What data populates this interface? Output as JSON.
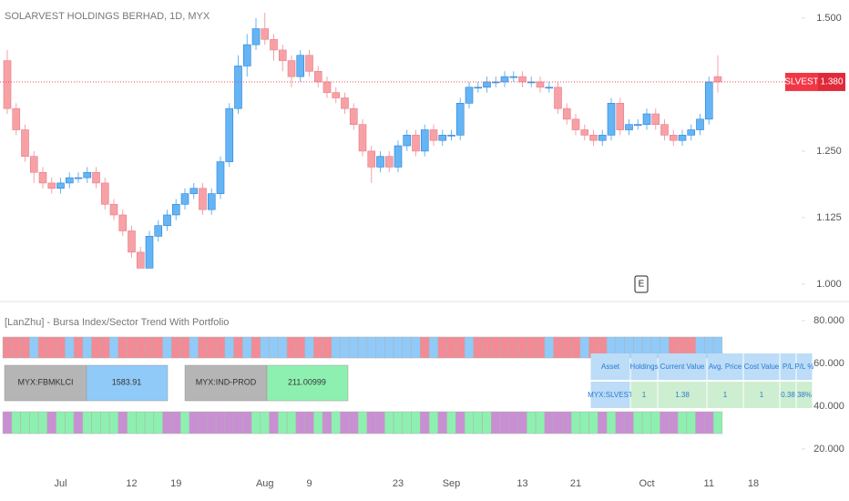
{
  "chart_data": [
    {
      "type": "candlestick",
      "title": "SOLARVEST HOLDINGS BERHAD, 1D, MYX",
      "categories": [
        null,
        null,
        null,
        null,
        null,
        null,
        "Jul",
        null,
        null,
        null,
        null,
        null,
        null,
        null,
        "12",
        null,
        null,
        null,
        null,
        "19",
        null,
        null,
        null,
        null,
        null,
        null,
        null,
        null,
        null,
        "Aug",
        null,
        null,
        null,
        null,
        "9",
        null,
        null,
        null,
        null,
        null,
        null,
        null,
        null,
        null,
        "23",
        null,
        null,
        null,
        null,
        null,
        "Sep",
        null,
        null,
        null,
        null,
        null,
        null,
        null,
        "13",
        null,
        null,
        null,
        null,
        null,
        "21",
        null,
        null,
        null,
        null,
        null,
        null,
        null,
        "Oct",
        null,
        null,
        null,
        null,
        null,
        null,
        "11",
        null,
        null,
        null,
        null,
        "18"
      ],
      "open": [
        1.42,
        1.33,
        1.29,
        1.24,
        1.21,
        1.19,
        1.18,
        1.19,
        1.2,
        1.2,
        1.21,
        1.19,
        1.15,
        1.13,
        1.1,
        1.06,
        1.03,
        1.09,
        1.11,
        1.13,
        1.15,
        1.17,
        1.18,
        1.14,
        1.17,
        1.23,
        1.33,
        1.41,
        1.45,
        1.48,
        1.46,
        1.44,
        1.42,
        1.39,
        1.43,
        1.4,
        1.38,
        1.36,
        1.35,
        1.33,
        1.3,
        1.25,
        1.22,
        1.24,
        1.22,
        1.26,
        1.28,
        1.25,
        1.29,
        1.27,
        1.28,
        1.28,
        1.34,
        1.37,
        1.37,
        1.38,
        1.38,
        1.39,
        1.39,
        1.38,
        1.38,
        1.37,
        1.37,
        1.33,
        1.31,
        1.29,
        1.28,
        1.27,
        1.28,
        1.34,
        1.29,
        1.3,
        1.3,
        1.32,
        1.3,
        1.28,
        1.27,
        1.28,
        1.29,
        1.31,
        1.39,
        null,
        null,
        null,
        null
      ],
      "high": [
        1.44,
        1.34,
        1.3,
        1.25,
        1.22,
        1.2,
        1.2,
        1.21,
        1.21,
        1.22,
        1.22,
        1.2,
        1.16,
        1.14,
        1.11,
        1.07,
        1.1,
        1.12,
        1.14,
        1.16,
        1.18,
        1.19,
        1.19,
        1.18,
        1.24,
        1.34,
        1.43,
        1.47,
        1.5,
        1.51,
        1.47,
        1.45,
        1.43,
        1.44,
        1.44,
        1.41,
        1.39,
        1.37,
        1.36,
        1.34,
        1.31,
        1.26,
        1.25,
        1.25,
        1.27,
        1.29,
        1.29,
        1.3,
        1.3,
        1.29,
        1.29,
        1.35,
        1.38,
        1.38,
        1.39,
        1.39,
        1.4,
        1.4,
        1.4,
        1.39,
        1.39,
        1.38,
        1.38,
        1.34,
        1.32,
        1.3,
        1.29,
        1.29,
        1.35,
        1.35,
        1.31,
        1.31,
        1.33,
        1.33,
        1.31,
        1.29,
        1.29,
        1.3,
        1.32,
        1.39,
        1.43,
        null,
        null,
        null,
        null
      ],
      "low": [
        1.32,
        1.28,
        1.23,
        1.19,
        1.18,
        1.17,
        1.17,
        1.18,
        1.19,
        1.19,
        1.18,
        1.14,
        1.12,
        1.09,
        1.05,
        1.03,
        1.03,
        1.08,
        1.1,
        1.12,
        1.14,
        1.16,
        1.13,
        1.13,
        1.16,
        1.22,
        1.32,
        1.39,
        1.44,
        1.45,
        1.42,
        1.4,
        1.37,
        1.38,
        1.39,
        1.37,
        1.35,
        1.34,
        1.32,
        1.29,
        1.24,
        1.19,
        1.21,
        1.21,
        1.21,
        1.25,
        1.24,
        1.24,
        1.26,
        1.26,
        1.27,
        1.27,
        1.33,
        1.36,
        1.36,
        1.37,
        1.37,
        1.38,
        1.37,
        1.37,
        1.36,
        1.36,
        1.32,
        1.3,
        1.28,
        1.27,
        1.26,
        1.26,
        1.27,
        1.28,
        1.28,
        1.29,
        1.29,
        1.29,
        1.27,
        1.26,
        1.26,
        1.27,
        1.28,
        1.3,
        1.36,
        null,
        null,
        null,
        null
      ],
      "close": [
        1.33,
        1.29,
        1.24,
        1.21,
        1.19,
        1.18,
        1.19,
        1.2,
        1.2,
        1.21,
        1.19,
        1.15,
        1.13,
        1.1,
        1.06,
        1.03,
        1.09,
        1.11,
        1.13,
        1.15,
        1.17,
        1.18,
        1.14,
        1.17,
        1.23,
        1.33,
        1.41,
        1.45,
        1.48,
        1.46,
        1.44,
        1.42,
        1.39,
        1.43,
        1.4,
        1.38,
        1.36,
        1.35,
        1.33,
        1.3,
        1.25,
        1.22,
        1.24,
        1.22,
        1.26,
        1.28,
        1.25,
        1.29,
        1.27,
        1.28,
        1.28,
        1.34,
        1.37,
        1.37,
        1.38,
        1.38,
        1.39,
        1.39,
        1.38,
        1.38,
        1.37,
        1.37,
        1.33,
        1.31,
        1.29,
        1.28,
        1.27,
        1.28,
        1.34,
        1.29,
        1.3,
        1.3,
        1.32,
        1.3,
        1.28,
        1.27,
        1.28,
        1.29,
        1.31,
        1.38,
        1.38,
        null,
        null,
        null,
        null
      ],
      "up_color": "#64b5f6",
      "down_color": "#f7a1a6",
      "ylim": [
        0.969,
        1.534
      ],
      "yticks": [
        {
          "value": 1,
          "label": "1.000"
        },
        {
          "value": 1.125,
          "label": "1.125"
        },
        {
          "value": 1.25,
          "label": "1.250"
        },
        {
          "value": 1.5,
          "label": "1.500"
        }
      ],
      "symbol": "SLVEST",
      "last_price": {
        "value": 1.38,
        "label": "1.380"
      },
      "price_color": "#f23645",
      "marker": "E"
    },
    {
      "type": "indicator",
      "title": "[LanZhu] - Bursa Index/Sector Trend With Portfolio",
      "ylim": [
        10.6,
        88.5
      ],
      "yticks": [
        {
          "value": 20,
          "label": "20.000"
        },
        {
          "value": 40,
          "label": "40.000"
        },
        {
          "value": 60,
          "label": "60.000"
        },
        {
          "value": 80,
          "label": "80.000"
        }
      ],
      "index_trend": [
        "#f28b95",
        "#f28b95",
        "#f28b95",
        "#90caf9",
        "#f28b95",
        "#f28b95",
        "#f28b95",
        "#90caf9",
        "#f28b95",
        "#90caf9",
        "#f28b95",
        "#f28b95",
        "#90caf9",
        "#f28b95",
        "#f28b95",
        "#f28b95",
        "#f28b95",
        "#f28b95",
        "#90caf9",
        "#f28b95",
        "#f28b95",
        "#90caf9",
        "#f28b95",
        "#f28b95",
        "#f28b95",
        "#90caf9",
        "#f28b95",
        "#90caf9",
        "#f28b95",
        "#90caf9",
        "#90caf9",
        "#90caf9",
        "#f28b95",
        "#f28b95",
        "#90caf9",
        "#f28b95",
        "#f28b95",
        "#90caf9",
        "#90caf9",
        "#90caf9",
        "#90caf9",
        "#90caf9",
        "#90caf9",
        "#90caf9",
        "#90caf9",
        "#90caf9",
        "#90caf9",
        "#f28b95",
        "#90caf9",
        "#f28b95",
        "#f28b95",
        "#f28b95",
        "#90caf9",
        "#f28b95",
        "#f28b95",
        "#f28b95",
        "#f28b95",
        "#f28b95",
        "#f28b95",
        "#f28b95",
        "#f28b95",
        "#90caf9",
        "#f28b95",
        "#f28b95",
        "#f28b95",
        "#90caf9",
        "#f28b95",
        "#f28b95",
        "#90caf9",
        "#90caf9",
        "#90caf9",
        "#90caf9",
        "#90caf9",
        "#90caf9",
        "#90caf9",
        "#f28b95",
        "#f28b95",
        "#f28b95",
        "#90caf9",
        "#90caf9",
        "#90caf9"
      ],
      "sector_trend": [
        "#c98fd3",
        "#8ef0b0",
        "#8ef0b0",
        "#8ef0b0",
        "#8ef0b0",
        "#c98fd3",
        "#8ef0b0",
        "#8ef0b0",
        "#c98fd3",
        "#8ef0b0",
        "#8ef0b0",
        "#8ef0b0",
        "#8ef0b0",
        "#c98fd3",
        "#8ef0b0",
        "#8ef0b0",
        "#8ef0b0",
        "#8ef0b0",
        "#c98fd3",
        "#c98fd3",
        "#8ef0b0",
        "#c98fd3",
        "#c98fd3",
        "#c98fd3",
        "#c98fd3",
        "#c98fd3",
        "#c98fd3",
        "#c98fd3",
        "#8ef0b0",
        "#8ef0b0",
        "#c98fd3",
        "#8ef0b0",
        "#8ef0b0",
        "#c98fd3",
        "#c98fd3",
        "#8ef0b0",
        "#c98fd3",
        "#8ef0b0",
        "#c98fd3",
        "#c98fd3",
        "#8ef0b0",
        "#c98fd3",
        "#c98fd3",
        "#8ef0b0",
        "#8ef0b0",
        "#8ef0b0",
        "#8ef0b0",
        "#c98fd3",
        "#8ef0b0",
        "#c98fd3",
        "#8ef0b0",
        "#c98fd3",
        "#8ef0b0",
        "#8ef0b0",
        "#8ef0b0",
        "#c98fd3",
        "#c98fd3",
        "#c98fd3",
        "#c98fd3",
        "#8ef0b0",
        "#8ef0b0",
        "#c98fd3",
        "#c98fd3",
        "#c98fd3",
        "#8ef0b0",
        "#8ef0b0",
        "#8ef0b0",
        "#c98fd3",
        "#8ef0b0",
        "#c98fd3",
        "#c98fd3",
        "#8ef0b0",
        "#8ef0b0",
        "#8ef0b0",
        "#c98fd3",
        "#c98fd3",
        "#8ef0b0",
        "#8ef0b0",
        "#c98fd3",
        "#c98fd3",
        "#8ef0b0"
      ],
      "indices": [
        {
          "symbol": "MYX:FBMKLCI",
          "value": 1583.91,
          "color": "#90caf9"
        },
        {
          "symbol": "MYX:IND-PROD",
          "value": 211.00999,
          "color": "#8ef0b0"
        }
      ],
      "portfolio": {
        "columns": [
          "Asset",
          "Holdings",
          "Current Value",
          "Avg. Price",
          "Cost Value",
          "P/L",
          "P/L %"
        ],
        "rows": [
          [
            "MYX:SLVEST",
            1,
            1.38,
            1,
            1,
            0.38,
            "38%"
          ]
        ]
      }
    }
  ]
}
